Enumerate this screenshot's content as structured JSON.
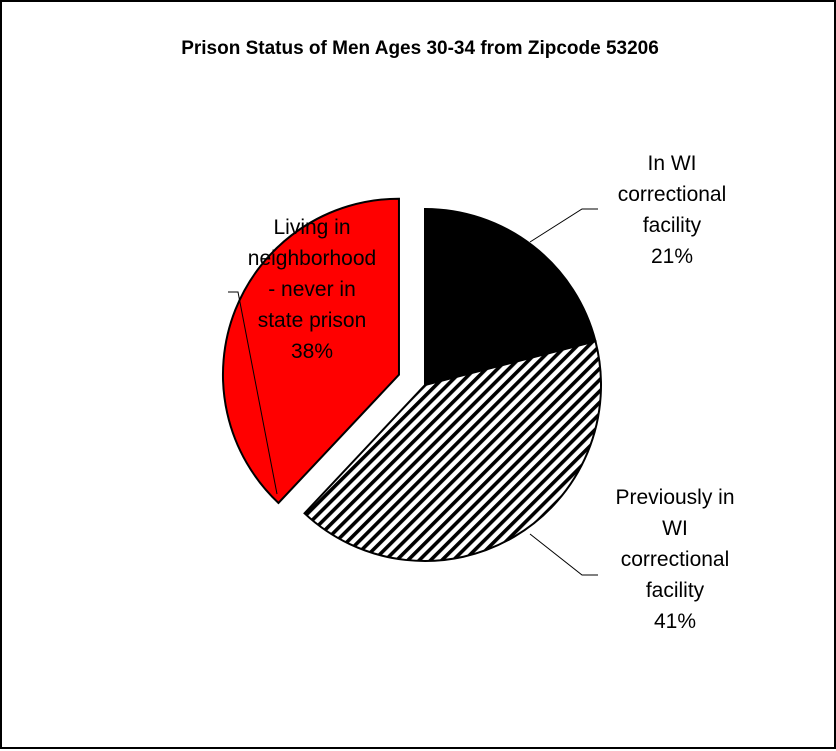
{
  "chart_data": {
    "type": "pie",
    "title": "Prison Status of Men Ages 30-34 from Zipcode 53206",
    "slices": [
      {
        "label_lines": [
          "In WI",
          "correctional",
          "facility"
        ],
        "percent_label": "21%",
        "value": 21,
        "fill": "#000000",
        "pattern": "solid"
      },
      {
        "label_lines": [
          "Previously in",
          "WI",
          "correctional",
          "facility"
        ],
        "percent_label": "41%",
        "value": 41,
        "fill": "#ffffff",
        "pattern": "diagonal-stripes"
      },
      {
        "label_lines": [
          "Living in",
          "neighborhood",
          "-  never in",
          "state prison"
        ],
        "percent_label": "38%",
        "value": 38,
        "fill": "#ff0000",
        "pattern": "solid",
        "exploded": true
      }
    ],
    "start_angle_deg": 0,
    "direction": "clockwise",
    "legend": "none"
  }
}
